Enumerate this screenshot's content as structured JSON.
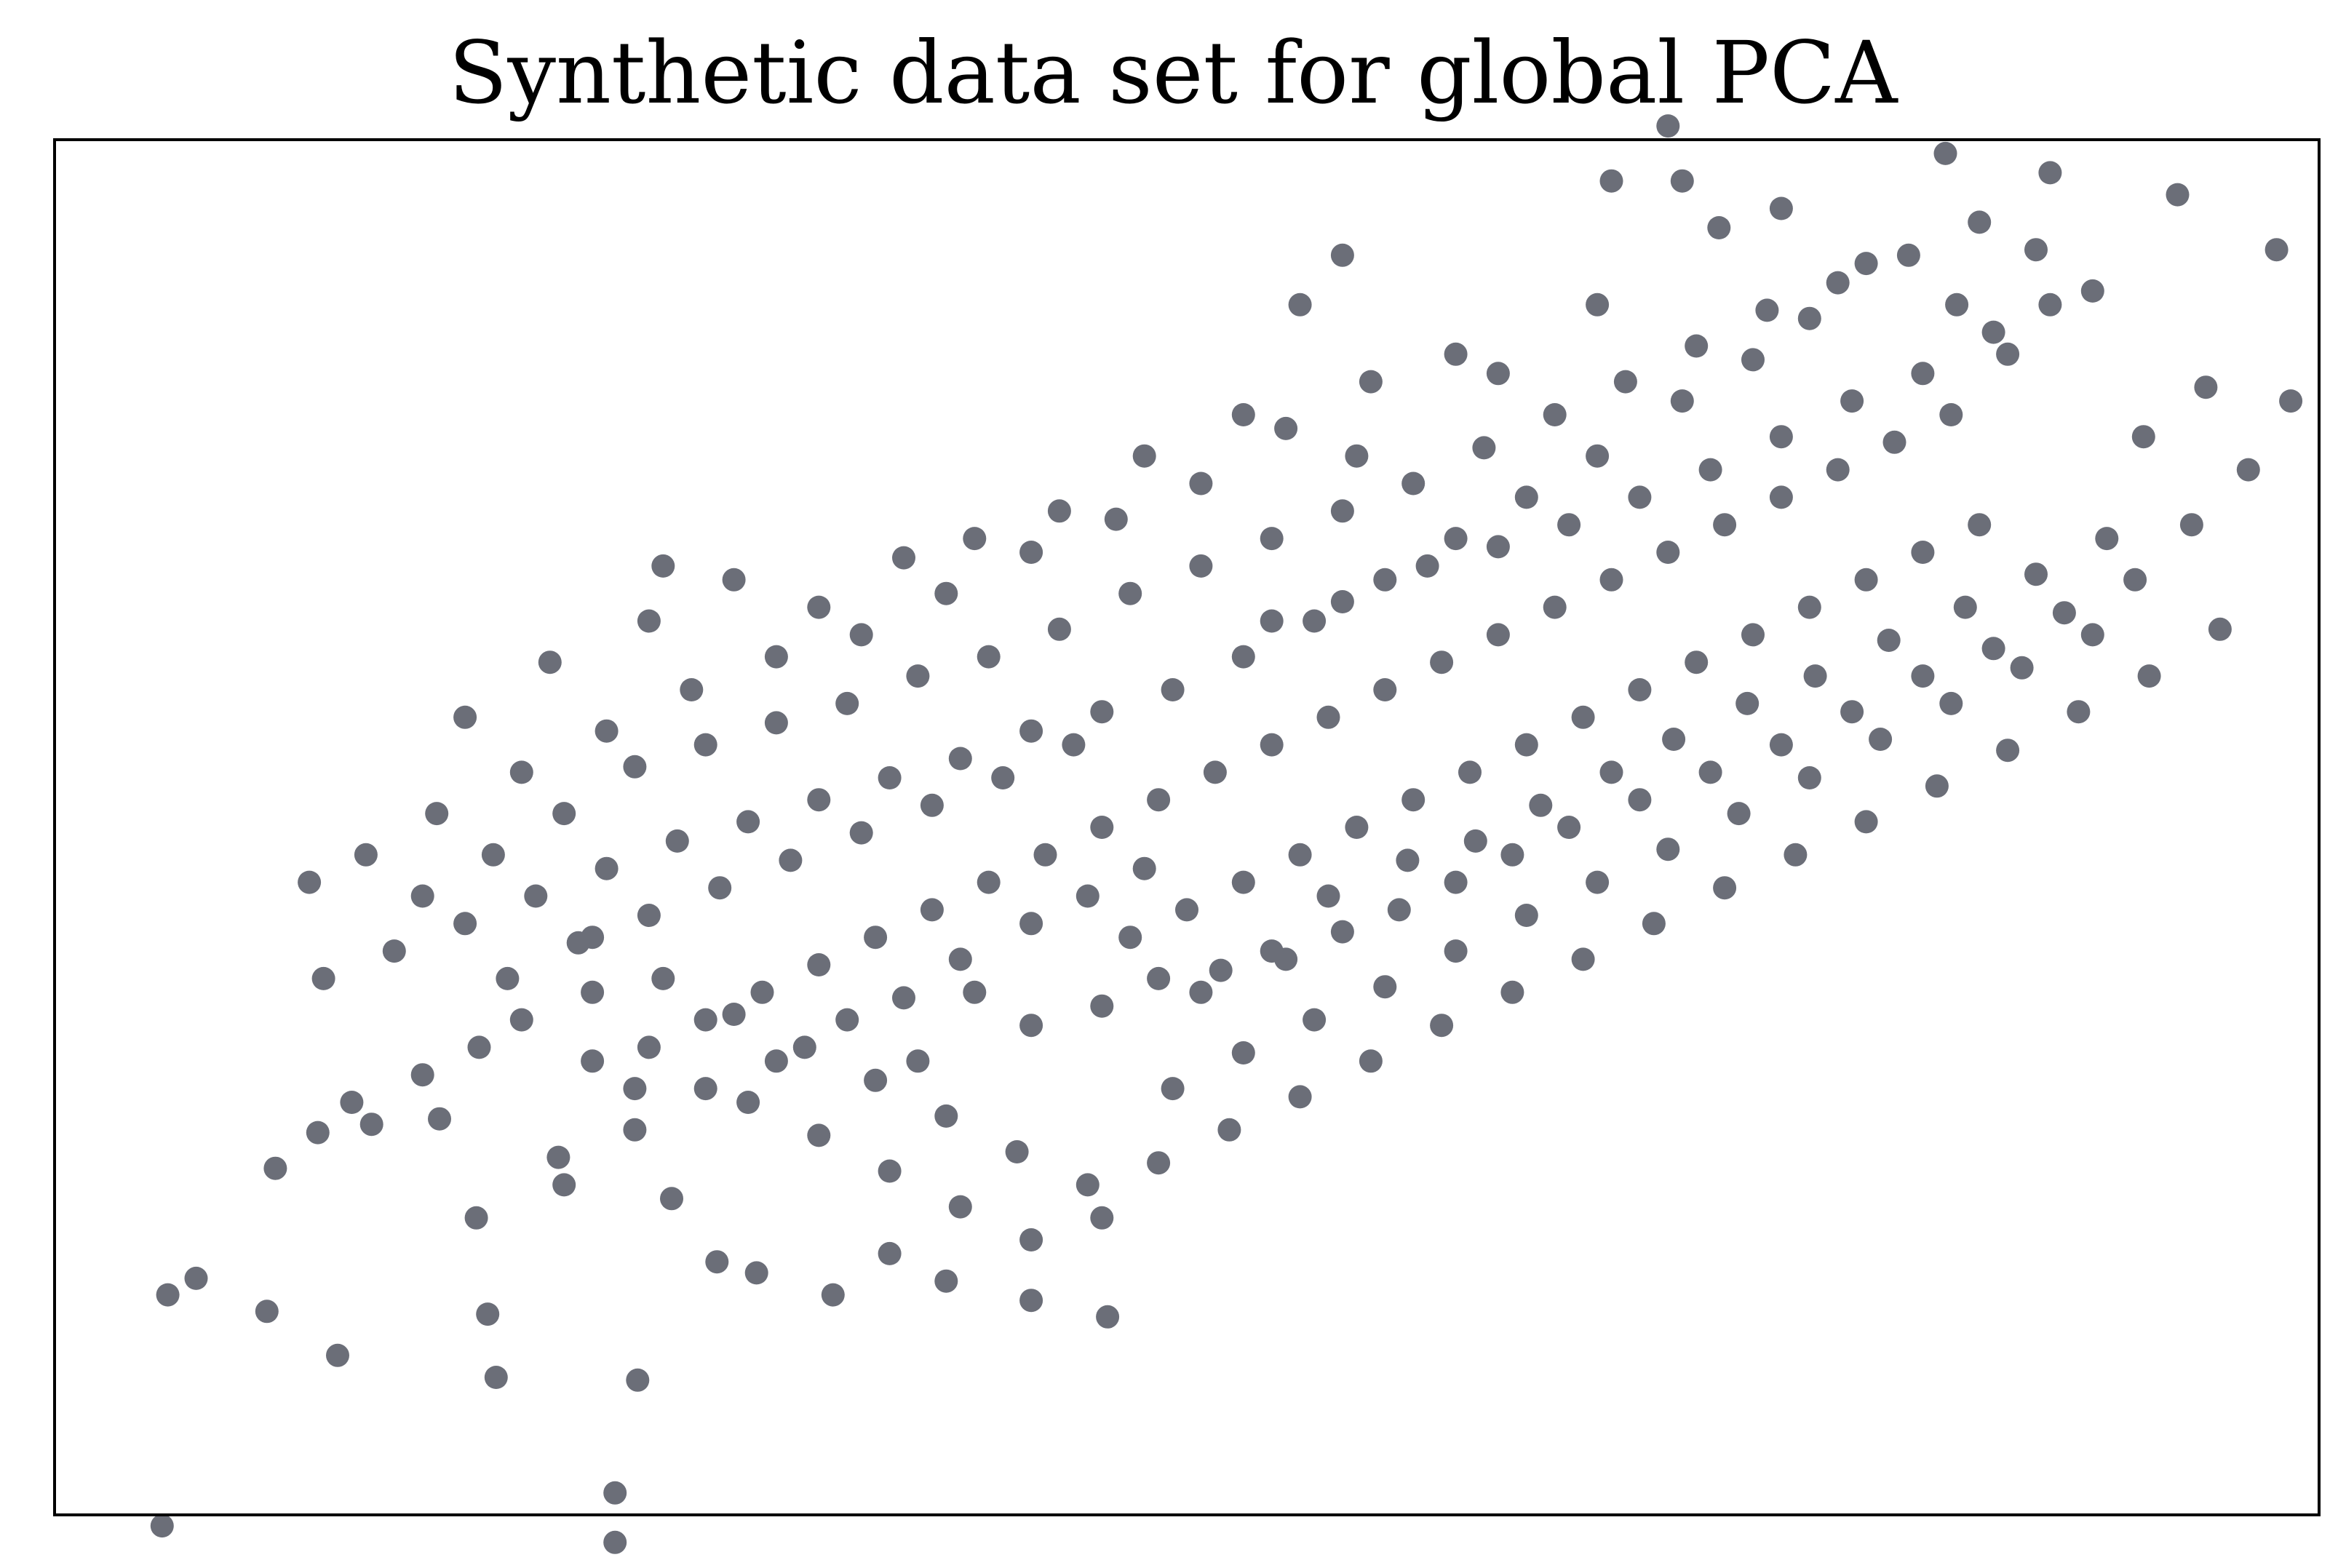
{
  "chart_data": {
    "type": "scatter",
    "title": "Synthetic data set for global PCA",
    "xlabel": "",
    "ylabel": "",
    "xlim": [
      -4.0,
      4.0
    ],
    "ylim": [
      -2.5,
      2.5
    ],
    "grid": false,
    "legend": "none",
    "marker_color": "#6b6e78",
    "ticks_visible": false,
    "series": [
      {
        "points": [
          [
            -3.6,
            -1.7
          ],
          [
            -3.5,
            -1.64
          ],
          [
            -3.25,
            -1.76
          ],
          [
            -3.0,
            -1.92
          ],
          [
            -3.62,
            -2.54
          ],
          [
            -2.02,
            -2.42
          ],
          [
            -2.02,
            -2.6
          ],
          [
            -1.94,
            -2.01
          ],
          [
            -2.64,
            -1.06
          ],
          [
            -2.51,
            -1.42
          ],
          [
            -2.44,
            -2.0
          ],
          [
            -2.47,
            -1.77
          ],
          [
            -3.22,
            -1.24
          ],
          [
            -3.07,
            -1.11
          ],
          [
            -2.95,
            -1.0
          ],
          [
            -2.88,
            -1.08
          ],
          [
            -2.7,
            -0.9
          ],
          [
            -2.5,
            -0.8
          ],
          [
            -2.35,
            -0.7
          ],
          [
            -2.1,
            -0.85
          ],
          [
            -1.95,
            -0.95
          ],
          [
            -2.22,
            -1.2
          ],
          [
            -1.82,
            -1.35
          ],
          [
            -1.66,
            -1.58
          ],
          [
            -1.52,
            -1.62
          ],
          [
            -1.25,
            -1.7
          ],
          [
            -1.05,
            -1.55
          ],
          [
            -0.85,
            -1.65
          ],
          [
            -0.55,
            -1.72
          ],
          [
            -0.28,
            -1.78
          ],
          [
            -0.95,
            -0.85
          ],
          [
            -0.75,
            -0.6
          ],
          [
            -0.55,
            -0.72
          ],
          [
            -0.3,
            -0.65
          ],
          [
            -0.1,
            -0.55
          ],
          [
            0.12,
            -0.52
          ],
          [
            0.35,
            -0.48
          ],
          [
            0.55,
            -0.38
          ],
          [
            0.75,
            -0.3
          ],
          [
            0.95,
            -0.2
          ],
          [
            1.15,
            -0.1
          ],
          [
            1.35,
            0.0
          ],
          [
            1.6,
            0.1
          ],
          [
            1.85,
            0.2
          ],
          [
            2.1,
            0.3
          ],
          [
            2.35,
            0.42
          ],
          [
            2.6,
            0.55
          ],
          [
            2.85,
            0.65
          ],
          [
            3.1,
            0.78
          ],
          [
            3.35,
            0.9
          ],
          [
            3.55,
            1.1
          ],
          [
            3.75,
            1.3
          ],
          [
            3.9,
            1.55
          ],
          [
            2.9,
            1.72
          ],
          [
            3.05,
            1.9
          ],
          [
            3.2,
            1.95
          ],
          [
            3.38,
            1.42
          ],
          [
            3.6,
            1.6
          ],
          [
            3.85,
            2.1
          ],
          [
            3.5,
            2.3
          ],
          [
            2.68,
            2.45
          ],
          [
            3.05,
            2.38
          ],
          [
            3.0,
            2.1
          ],
          [
            2.72,
            1.9
          ],
          [
            2.4,
            2.05
          ],
          [
            2.2,
            1.85
          ],
          [
            2.0,
            1.7
          ],
          [
            1.75,
            1.55
          ],
          [
            1.45,
            1.35
          ],
          [
            1.2,
            1.2
          ],
          [
            0.95,
            1.05
          ],
          [
            0.7,
            0.9
          ],
          [
            0.45,
            0.75
          ],
          [
            0.2,
            0.62
          ],
          [
            -0.05,
            0.5
          ],
          [
            -0.3,
            0.42
          ],
          [
            -0.55,
            0.35
          ],
          [
            -0.8,
            0.25
          ],
          [
            -1.05,
            0.18
          ],
          [
            -1.3,
            0.1
          ],
          [
            -1.55,
            0.02
          ],
          [
            -1.8,
            -0.05
          ],
          [
            -2.05,
            -0.15
          ],
          [
            -2.3,
            -0.25
          ],
          [
            -2.55,
            -0.35
          ],
          [
            -2.8,
            -0.45
          ],
          [
            -3.05,
            -0.55
          ],
          [
            -2.7,
            -0.25
          ],
          [
            -2.45,
            -0.1
          ],
          [
            -2.2,
            0.05
          ],
          [
            -1.95,
            0.22
          ],
          [
            -1.7,
            0.3
          ],
          [
            -1.45,
            0.38
          ],
          [
            -1.2,
            0.45
          ],
          [
            -0.95,
            0.55
          ],
          [
            -0.7,
            0.62
          ],
          [
            -0.45,
            0.72
          ],
          [
            -0.2,
            0.85
          ],
          [
            0.05,
            0.95
          ],
          [
            0.3,
            1.05
          ],
          [
            0.55,
            1.15
          ],
          [
            0.8,
            1.25
          ],
          [
            1.05,
            1.38
          ],
          [
            1.3,
            1.5
          ],
          [
            1.55,
            1.62
          ],
          [
            1.8,
            1.75
          ],
          [
            2.05,
            1.88
          ],
          [
            2.3,
            1.98
          ],
          [
            2.55,
            2.08
          ],
          [
            2.8,
            2.2
          ],
          [
            1.7,
            2.55
          ],
          [
            1.75,
            2.35
          ],
          [
            1.88,
            2.18
          ],
          [
            1.45,
            1.9
          ],
          [
            0.95,
            1.72
          ],
          [
            0.65,
            1.62
          ],
          [
            0.35,
            1.45
          ],
          [
            0.05,
            1.25
          ],
          [
            -0.25,
            1.12
          ],
          [
            -0.55,
            1.0
          ],
          [
            -0.85,
            0.85
          ],
          [
            -1.15,
            0.7
          ],
          [
            -1.45,
            0.62
          ],
          [
            -1.75,
            0.5
          ],
          [
            -2.05,
            0.35
          ],
          [
            -2.35,
            0.2
          ],
          [
            -2.65,
            0.05
          ],
          [
            -2.9,
            -0.1
          ],
          [
            -3.1,
            -0.2
          ],
          [
            -2.1,
            -0.4
          ],
          [
            -1.85,
            -0.55
          ],
          [
            -1.6,
            -0.68
          ],
          [
            -1.35,
            -0.8
          ],
          [
            -1.1,
            -0.92
          ],
          [
            -0.85,
            -1.05
          ],
          [
            -0.6,
            -1.18
          ],
          [
            -0.35,
            -1.3
          ],
          [
            -0.1,
            -1.22
          ],
          [
            0.15,
            -1.1
          ],
          [
            0.4,
            -0.98
          ],
          [
            0.65,
            -0.85
          ],
          [
            0.9,
            -0.72
          ],
          [
            1.15,
            -0.6
          ],
          [
            1.4,
            -0.48
          ],
          [
            1.65,
            -0.35
          ],
          [
            1.9,
            -0.22
          ],
          [
            2.15,
            -0.1
          ],
          [
            2.4,
            0.02
          ],
          [
            2.65,
            0.15
          ],
          [
            2.9,
            0.28
          ],
          [
            3.15,
            0.42
          ],
          [
            3.4,
            0.55
          ],
          [
            3.65,
            0.72
          ],
          [
            -1.55,
            -1.0
          ],
          [
            -1.3,
            -1.12
          ],
          [
            -1.05,
            -1.25
          ],
          [
            -0.8,
            -1.38
          ],
          [
            -0.55,
            -1.5
          ],
          [
            -0.3,
            -1.42
          ],
          [
            -0.05,
            -0.95
          ],
          [
            0.2,
            -0.82
          ],
          [
            0.45,
            -0.7
          ],
          [
            0.7,
            -0.58
          ],
          [
            0.95,
            -0.45
          ],
          [
            1.2,
            -0.32
          ],
          [
            1.45,
            -0.2
          ],
          [
            1.7,
            -0.08
          ],
          [
            1.95,
            0.05
          ],
          [
            2.2,
            0.18
          ],
          [
            2.45,
            0.32
          ],
          [
            2.7,
            0.45
          ],
          [
            2.95,
            0.58
          ],
          [
            3.2,
            0.7
          ],
          [
            0.1,
            0.2
          ],
          [
            0.3,
            0.3
          ],
          [
            0.5,
            0.4
          ],
          [
            0.7,
            0.5
          ],
          [
            0.9,
            0.6
          ],
          [
            1.1,
            0.7
          ],
          [
            1.3,
            0.8
          ],
          [
            1.5,
            0.9
          ],
          [
            1.7,
            1.0
          ],
          [
            1.9,
            1.1
          ],
          [
            2.1,
            1.2
          ],
          [
            2.3,
            1.3
          ],
          [
            2.5,
            1.4
          ],
          [
            2.7,
            1.5
          ],
          [
            -0.1,
            0.1
          ],
          [
            -0.3,
            0.0
          ],
          [
            -0.5,
            -0.1
          ],
          [
            -0.7,
            -0.2
          ],
          [
            -0.9,
            -0.3
          ],
          [
            -1.1,
            -0.4
          ],
          [
            -1.3,
            -0.5
          ],
          [
            -1.5,
            -0.6
          ],
          [
            -1.7,
            -0.7
          ],
          [
            -1.9,
            -0.8
          ],
          [
            -2.1,
            -0.6
          ],
          [
            0.0,
            -0.3
          ],
          [
            0.2,
            -0.2
          ],
          [
            0.4,
            -0.1
          ],
          [
            0.6,
            0.0
          ],
          [
            0.8,
            0.1
          ],
          [
            1.0,
            0.2
          ],
          [
            1.2,
            0.3
          ],
          [
            1.4,
            0.4
          ],
          [
            1.6,
            0.5
          ],
          [
            1.8,
            0.6
          ],
          [
            2.0,
            0.7
          ],
          [
            2.2,
            0.8
          ],
          [
            2.4,
            0.9
          ],
          [
            2.6,
            1.0
          ],
          [
            2.8,
            1.1
          ],
          [
            0.3,
            0.75
          ],
          [
            0.55,
            0.82
          ],
          [
            0.85,
            0.95
          ],
          [
            1.1,
            1.02
          ],
          [
            1.35,
            1.1
          ],
          [
            1.6,
            1.2
          ],
          [
            1.85,
            1.3
          ],
          [
            2.1,
            1.42
          ],
          [
            2.35,
            1.55
          ],
          [
            2.6,
            1.65
          ],
          [
            2.85,
            1.8
          ],
          [
            -0.4,
            0.3
          ],
          [
            -0.65,
            0.18
          ],
          [
            -0.9,
            0.08
          ],
          [
            -1.15,
            -0.02
          ],
          [
            -1.4,
            -0.12
          ],
          [
            -1.65,
            -0.22
          ],
          [
            -1.9,
            -0.32
          ],
          [
            -2.15,
            -0.42
          ],
          [
            -2.4,
            -0.55
          ],
          [
            -0.2,
            -0.4
          ],
          [
            0.05,
            -0.6
          ],
          [
            0.3,
            -0.45
          ],
          [
            0.5,
            -0.25
          ],
          [
            0.78,
            -0.12
          ],
          [
            1.02,
            -0.05
          ],
          [
            1.25,
            0.08
          ],
          [
            1.5,
            0.2
          ],
          [
            1.72,
            0.32
          ],
          [
            1.98,
            0.45
          ],
          [
            2.22,
            0.55
          ],
          [
            2.48,
            0.68
          ],
          [
            2.75,
            0.8
          ],
          [
            3.0,
            0.92
          ],
          [
            3.25,
            1.05
          ],
          [
            1.1,
            1.65
          ],
          [
            0.6,
            1.35
          ],
          [
            0.2,
            1.5
          ],
          [
            -0.15,
            1.35
          ],
          [
            -0.45,
            1.15
          ],
          [
            -0.75,
            1.05
          ],
          [
            -1.0,
            0.98
          ],
          [
            -1.3,
            0.8
          ],
          [
            -1.6,
            0.9
          ],
          [
            -1.9,
            0.75
          ],
          [
            -1.85,
            0.95
          ],
          [
            -2.25,
            0.6
          ],
          [
            -2.55,
            0.4
          ],
          [
            0.4,
            1.9
          ],
          [
            0.55,
            2.08
          ],
          [
            1.5,
            2.35
          ],
          [
            2.1,
            2.25
          ],
          [
            -0.55,
            -0.35
          ],
          [
            -0.35,
            -0.25
          ],
          [
            -0.15,
            -0.15
          ],
          [
            -0.8,
            -0.48
          ],
          [
            -1.0,
            -0.62
          ],
          [
            -1.2,
            -0.7
          ],
          [
            -1.45,
            -0.85
          ],
          [
            -1.7,
            -0.95
          ],
          [
            -1.95,
            -1.1
          ],
          [
            -2.2,
            -1.3
          ]
        ]
      }
    ]
  }
}
